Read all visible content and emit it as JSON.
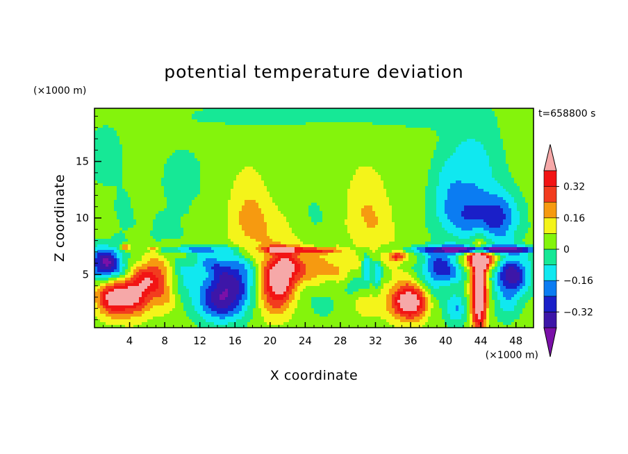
{
  "chart_data": {
    "type": "heatmap",
    "title": "potential temperature deviation",
    "xlabel": "X coordinate",
    "ylabel": "Z coordinate",
    "x_unit": "(×1000 m)",
    "y_unit": "(×1000 m)",
    "time_label": "t=658800 s",
    "xlim": [
      0,
      50
    ],
    "ylim": [
      0.3,
      19.7
    ],
    "x_ticks": [
      4,
      8,
      12,
      16,
      20,
      24,
      28,
      32,
      36,
      40,
      44,
      48
    ],
    "y_ticks": [
      5,
      10,
      15
    ],
    "colorbar": {
      "levels": [
        -0.4,
        -0.32,
        -0.24,
        -0.16,
        -0.08,
        0,
        0.08,
        0.16,
        0.24,
        0.32,
        0.4
      ],
      "labels": [
        "0.32",
        "0.16",
        "0",
        "−0.16",
        "−0.32"
      ],
      "label_values": [
        0.32,
        0.16,
        0,
        -0.16,
        -0.32
      ],
      "colors": [
        "#7a10a8",
        "#3d16a8",
        "#1a1fc8",
        "#0b7cf2",
        "#10e8f0",
        "#16e896",
        "#84f40c",
        "#f4f41a",
        "#f69a10",
        "#f23c1e",
        "#f21414",
        "#f6a8a8"
      ]
    },
    "fields": {
      "background": 0.04,
      "features": [
        {
          "x": 1.2,
          "z": 15.5,
          "sx": 3.0,
          "sz": 4.0,
          "a": -0.06
        },
        {
          "x": 10,
          "z": 13.5,
          "sx": 3.5,
          "sz": 4.0,
          "a": -0.06
        },
        {
          "x": 19,
          "z": 19.2,
          "sx": 10,
          "sz": 1.6,
          "a": -0.06
        },
        {
          "x": 36,
          "z": 19.2,
          "sx": 8,
          "sz": 1.6,
          "a": -0.06
        },
        {
          "x": 17.5,
          "z": 10.5,
          "sx": 2.2,
          "sz": 3.8,
          "a": 0.12
        },
        {
          "x": 19.5,
          "z": 9.0,
          "sx": 3.0,
          "sz": 2.2,
          "a": 0.08
        },
        {
          "x": 31,
          "z": 10.5,
          "sx": 2.2,
          "sz": 4.0,
          "a": 0.12
        },
        {
          "x": 33,
          "z": 9.0,
          "sx": 2.0,
          "sz": 2.0,
          "a": 0.04
        },
        {
          "x": 25,
          "z": 10.0,
          "sx": 1.8,
          "sz": 3.0,
          "a": -0.05
        },
        {
          "x": 43,
          "z": 14.0,
          "sx": 3.2,
          "sz": 4.5,
          "a": -0.18
        },
        {
          "x": 43.5,
          "z": 10.0,
          "sx": 4.0,
          "sz": 2.0,
          "a": -0.22
        },
        {
          "x": 46.5,
          "z": 10.0,
          "sx": 2.0,
          "sz": 2.5,
          "a": -0.15
        },
        {
          "x": 40,
          "z": 12.5,
          "sx": 1.8,
          "sz": 2.8,
          "a": -0.1
        },
        {
          "x": 3.5,
          "z": 10.0,
          "sx": 1.5,
          "sz": 2.5,
          "a": -0.05
        },
        {
          "x": 8,
          "z": 9.0,
          "sx": 2.0,
          "sz": 1.5,
          "a": -0.06
        },
        {
          "x": 1.2,
          "z": 6.0,
          "sx": 1.8,
          "sz": 1.4,
          "a": -0.44
        },
        {
          "x": 3.5,
          "z": 5.0,
          "sx": 2.5,
          "sz": 1.5,
          "a": -0.1
        },
        {
          "x": 2.0,
          "z": 3.0,
          "sx": 1.8,
          "sz": 1.6,
          "a": 0.4
        },
        {
          "x": 4.5,
          "z": 3.2,
          "sx": 1.8,
          "sz": 1.8,
          "a": 0.36
        },
        {
          "x": 6.5,
          "z": 4.8,
          "sx": 2.0,
          "sz": 1.6,
          "a": 0.3
        },
        {
          "x": 8.0,
          "z": 3.0,
          "sx": 1.6,
          "sz": 1.5,
          "a": 0.12
        },
        {
          "x": 10.0,
          "z": 4.5,
          "sx": 1.5,
          "sz": 1.5,
          "a": -0.12
        },
        {
          "x": 14.5,
          "z": 2.8,
          "sx": 3.0,
          "sz": 2.0,
          "a": -0.4
        },
        {
          "x": 16.0,
          "z": 5.0,
          "sx": 2.5,
          "sz": 1.8,
          "a": -0.25
        },
        {
          "x": 13.0,
          "z": 6.0,
          "sx": 2.5,
          "sz": 1.2,
          "a": -0.15
        },
        {
          "x": 21.0,
          "z": 5.0,
          "sx": 1.8,
          "sz": 2.0,
          "a": 0.4
        },
        {
          "x": 20.5,
          "z": 3.0,
          "sx": 2.0,
          "sz": 2.0,
          "a": 0.2
        },
        {
          "x": 23.0,
          "z": 5.8,
          "sx": 1.8,
          "sz": 1.5,
          "a": 0.2
        },
        {
          "x": 25.5,
          "z": 5.5,
          "sx": 1.5,
          "sz": 1.5,
          "a": 0.14
        },
        {
          "x": 28.0,
          "z": 5.5,
          "sx": 1.5,
          "sz": 1.2,
          "a": 0.12
        },
        {
          "x": 26.0,
          "z": 2.5,
          "sx": 2.5,
          "sz": 1.8,
          "a": -0.06
        },
        {
          "x": 31.0,
          "z": 5.5,
          "sx": 0.5,
          "sz": 1.3,
          "a": -0.25
        },
        {
          "x": 32.2,
          "z": 5.0,
          "sx": 0.5,
          "sz": 1.3,
          "a": -0.2
        },
        {
          "x": 29.5,
          "z": 4.0,
          "sx": 1.2,
          "sz": 1.0,
          "a": -0.1
        },
        {
          "x": 31.0,
          "z": 2.3,
          "sx": 2.2,
          "sz": 1.2,
          "a": 0.08
        },
        {
          "x": 36.0,
          "z": 2.5,
          "sx": 2.2,
          "sz": 1.5,
          "a": 0.48
        },
        {
          "x": 35.0,
          "z": 4.0,
          "sx": 1.5,
          "sz": 1.5,
          "a": 0.06
        },
        {
          "x": 38.5,
          "z": 3.5,
          "sx": 1.5,
          "sz": 2.5,
          "a": -0.12
        },
        {
          "x": 40.0,
          "z": 5.8,
          "sx": 2.5,
          "sz": 1.5,
          "a": -0.32
        },
        {
          "x": 41.2,
          "z": 2.0,
          "sx": 1.2,
          "sz": 1.5,
          "a": -0.2
        },
        {
          "x": 43.8,
          "z": 3.6,
          "sx": 0.9,
          "sz": 3.8,
          "a": 0.55
        },
        {
          "x": 43.8,
          "z": 6.3,
          "sx": 2.5,
          "sz": 0.8,
          "a": 0.4
        },
        {
          "x": 47.5,
          "z": 5.0,
          "sx": 2.0,
          "sz": 1.8,
          "a": -0.42
        },
        {
          "x": 47.0,
          "z": 2.2,
          "sx": 1.5,
          "sz": 1.5,
          "a": -0.12
        },
        {
          "x": 44.0,
          "z": 7.2,
          "sx": 7.0,
          "sz": 0.3,
          "a": -0.5
        },
        {
          "x": 12.0,
          "z": 7.2,
          "sx": 4.0,
          "sz": 0.25,
          "a": -0.2
        },
        {
          "x": 21.5,
          "z": 7.2,
          "sx": 2.5,
          "sz": 0.3,
          "a": 0.35
        },
        {
          "x": 26.0,
          "z": 7.1,
          "sx": 2.0,
          "sz": 0.3,
          "a": 0.25
        },
        {
          "x": 3.5,
          "z": 7.4,
          "sx": 0.5,
          "sz": 0.25,
          "a": 0.3
        },
        {
          "x": 6.8,
          "z": 7.3,
          "sx": 0.5,
          "sz": 0.2,
          "a": 0.2
        },
        {
          "x": 34.5,
          "z": 6.6,
          "sx": 1.0,
          "sz": 0.5,
          "a": 0.3
        }
      ]
    }
  }
}
